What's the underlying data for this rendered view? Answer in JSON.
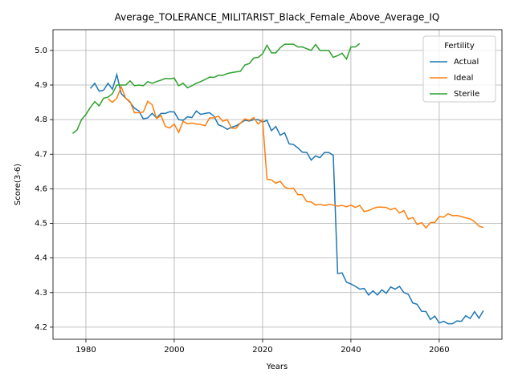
{
  "chart_data": {
    "type": "line",
    "title": "Average_TOLERANCE_MILITARIST_Black_Female_Above_Average_IQ",
    "x_label": "Years",
    "y_label": "Score(3-6)",
    "legend_title": "Fertility",
    "legend_position": "upper right",
    "grid": true,
    "xlim": [
      1972.55,
      2074.2
    ],
    "ylim": [
      4.165,
      5.06
    ],
    "xticks": [
      1980,
      2000,
      2020,
      2040,
      2060
    ],
    "yticks": [
      4.2,
      4.3,
      4.4,
      4.5,
      4.6,
      4.7,
      4.8,
      4.9,
      {
        "value": 5,
        "label": "5.0"
      }
    ],
    "series": [
      {
        "name": "Actual",
        "color": "#1f77b4",
        "x": [
          1981,
          1982,
          1983,
          1984,
          1985,
          1986,
          1987,
          1988,
          1989,
          1990,
          1991,
          1992,
          1993,
          1994,
          1995,
          1996,
          1997,
          1998,
          1999,
          2000,
          2001,
          2002,
          2003,
          2004,
          2005,
          2006,
          2007,
          2008,
          2009,
          2010,
          2011,
          2012,
          2013,
          2014,
          2015,
          2016,
          2017,
          2018,
          2019,
          2020,
          2021,
          2022,
          2023,
          2024,
          2025,
          2026,
          2027,
          2028,
          2029,
          2030,
          2031,
          2032,
          2033,
          2034,
          2035,
          2036,
          2037,
          2038,
          2039,
          2040,
          2041,
          2042,
          2043,
          2044,
          2045,
          2046,
          2047,
          2048,
          2049,
          2050,
          2051,
          2052,
          2053,
          2054,
          2055,
          2056,
          2057,
          2058,
          2059,
          2060,
          2061,
          2062,
          2063,
          2064,
          2065,
          2066,
          2067,
          2068,
          2069,
          2070
        ],
        "values": [
          4.89,
          4.905,
          4.882,
          4.885,
          4.905,
          4.888,
          4.93,
          4.875,
          4.862,
          4.85,
          4.833,
          4.825,
          4.802,
          4.805,
          4.818,
          4.805,
          4.818,
          4.818,
          4.823,
          4.822,
          4.8,
          4.798,
          4.808,
          4.806,
          4.825,
          4.815,
          4.818,
          4.82,
          4.81,
          4.785,
          4.78,
          4.772,
          4.778,
          4.782,
          4.79,
          4.798,
          4.796,
          4.8,
          4.8,
          4.793,
          4.798,
          4.768,
          4.78,
          4.755,
          4.762,
          4.73,
          4.728,
          4.718,
          4.706,
          4.705,
          4.683,
          4.695,
          4.69,
          4.705,
          4.705,
          4.697,
          4.355,
          4.357,
          4.33,
          4.325,
          4.318,
          4.31,
          4.312,
          4.293,
          4.305,
          4.293,
          4.308,
          4.298,
          4.316,
          4.31,
          4.318,
          4.3,
          4.295,
          4.27,
          4.266,
          4.246,
          4.245,
          4.222,
          4.232,
          4.212,
          4.217,
          4.21,
          4.21,
          4.218,
          4.217,
          4.233,
          4.225,
          4.245,
          4.226,
          4.248
        ]
      },
      {
        "name": "Ideal",
        "color": "#ff7f0e",
        "x": [
          1985,
          1986,
          1987,
          1988,
          1989,
          1990,
          1991,
          1992,
          1993,
          1994,
          1995,
          1996,
          1997,
          1998,
          1999,
          2000,
          2001,
          2002,
          2003,
          2004,
          2005,
          2006,
          2007,
          2008,
          2009,
          2010,
          2011,
          2012,
          2013,
          2014,
          2015,
          2016,
          2017,
          2018,
          2019,
          2020,
          2021,
          2022,
          2023,
          2024,
          2025,
          2026,
          2027,
          2028,
          2029,
          2030,
          2031,
          2032,
          2033,
          2034,
          2035,
          2036,
          2037,
          2038,
          2039,
          2040,
          2041,
          2042,
          2043,
          2044,
          2045,
          2046,
          2047,
          2048,
          2049,
          2050,
          2051,
          2052,
          2053,
          2054,
          2055,
          2056,
          2057,
          2058,
          2059,
          2060,
          2061,
          2062,
          2063,
          2064,
          2065,
          2066,
          2067,
          2068,
          2069,
          2070
        ],
        "values": [
          4.86,
          4.85,
          4.862,
          4.895,
          4.862,
          4.852,
          4.82,
          4.82,
          4.822,
          4.853,
          4.843,
          4.803,
          4.812,
          4.78,
          4.776,
          4.787,
          4.763,
          4.795,
          4.788,
          4.79,
          4.787,
          4.786,
          4.782,
          4.805,
          4.805,
          4.81,
          4.795,
          4.8,
          4.775,
          4.775,
          4.79,
          4.802,
          4.798,
          4.806,
          4.787,
          4.8,
          4.628,
          4.626,
          4.616,
          4.622,
          4.605,
          4.6,
          4.602,
          4.583,
          4.583,
          4.563,
          4.562,
          4.553,
          4.555,
          4.552,
          4.555,
          4.553,
          4.55,
          4.552,
          4.548,
          4.553,
          4.546,
          4.552,
          4.534,
          4.537,
          4.543,
          4.547,
          4.547,
          4.546,
          4.54,
          4.544,
          4.53,
          4.537,
          4.512,
          4.517,
          4.497,
          4.502,
          4.487,
          4.502,
          4.503,
          4.52,
          4.518,
          4.528,
          4.522,
          4.523,
          4.52,
          4.516,
          4.513,
          4.505,
          4.492,
          4.488
        ]
      },
      {
        "name": "Sterile",
        "color": "#2ca02c",
        "x": [
          1977,
          1978,
          1979,
          1980,
          1981,
          1982,
          1983,
          1984,
          1985,
          1986,
          1987,
          1988,
          1989,
          1990,
          1991,
          1992,
          1993,
          1994,
          1995,
          1996,
          1997,
          1998,
          1999,
          2000,
          2001,
          2002,
          2003,
          2004,
          2005,
          2006,
          2007,
          2008,
          2009,
          2010,
          2011,
          2012,
          2013,
          2014,
          2015,
          2016,
          2017,
          2018,
          2019,
          2020,
          2021,
          2022,
          2023,
          2024,
          2025,
          2026,
          2027,
          2028,
          2029,
          2030,
          2031,
          2032,
          2033,
          2034,
          2035,
          2036,
          2037,
          2038,
          2039,
          2040,
          2041,
          2042
        ],
        "values": [
          4.76,
          4.77,
          4.8,
          4.815,
          4.835,
          4.852,
          4.84,
          4.862,
          4.865,
          4.875,
          4.9,
          4.9,
          4.9,
          4.912,
          4.898,
          4.9,
          4.898,
          4.91,
          4.905,
          4.91,
          4.914,
          4.919,
          4.918,
          4.92,
          4.898,
          4.905,
          4.892,
          4.898,
          4.905,
          4.91,
          4.916,
          4.923,
          4.922,
          4.928,
          4.928,
          4.933,
          4.936,
          4.938,
          4.94,
          4.958,
          4.962,
          4.978,
          4.98,
          4.99,
          5.015,
          4.993,
          4.993,
          5.008,
          5.018,
          5.018,
          5.018,
          5.01,
          5.01,
          5.005,
          5,
          5.017,
          5,
          5,
          5,
          4.98,
          4.985,
          4.992,
          4.975,
          5.01,
          5.01,
          5.02
        ]
      }
    ]
  }
}
